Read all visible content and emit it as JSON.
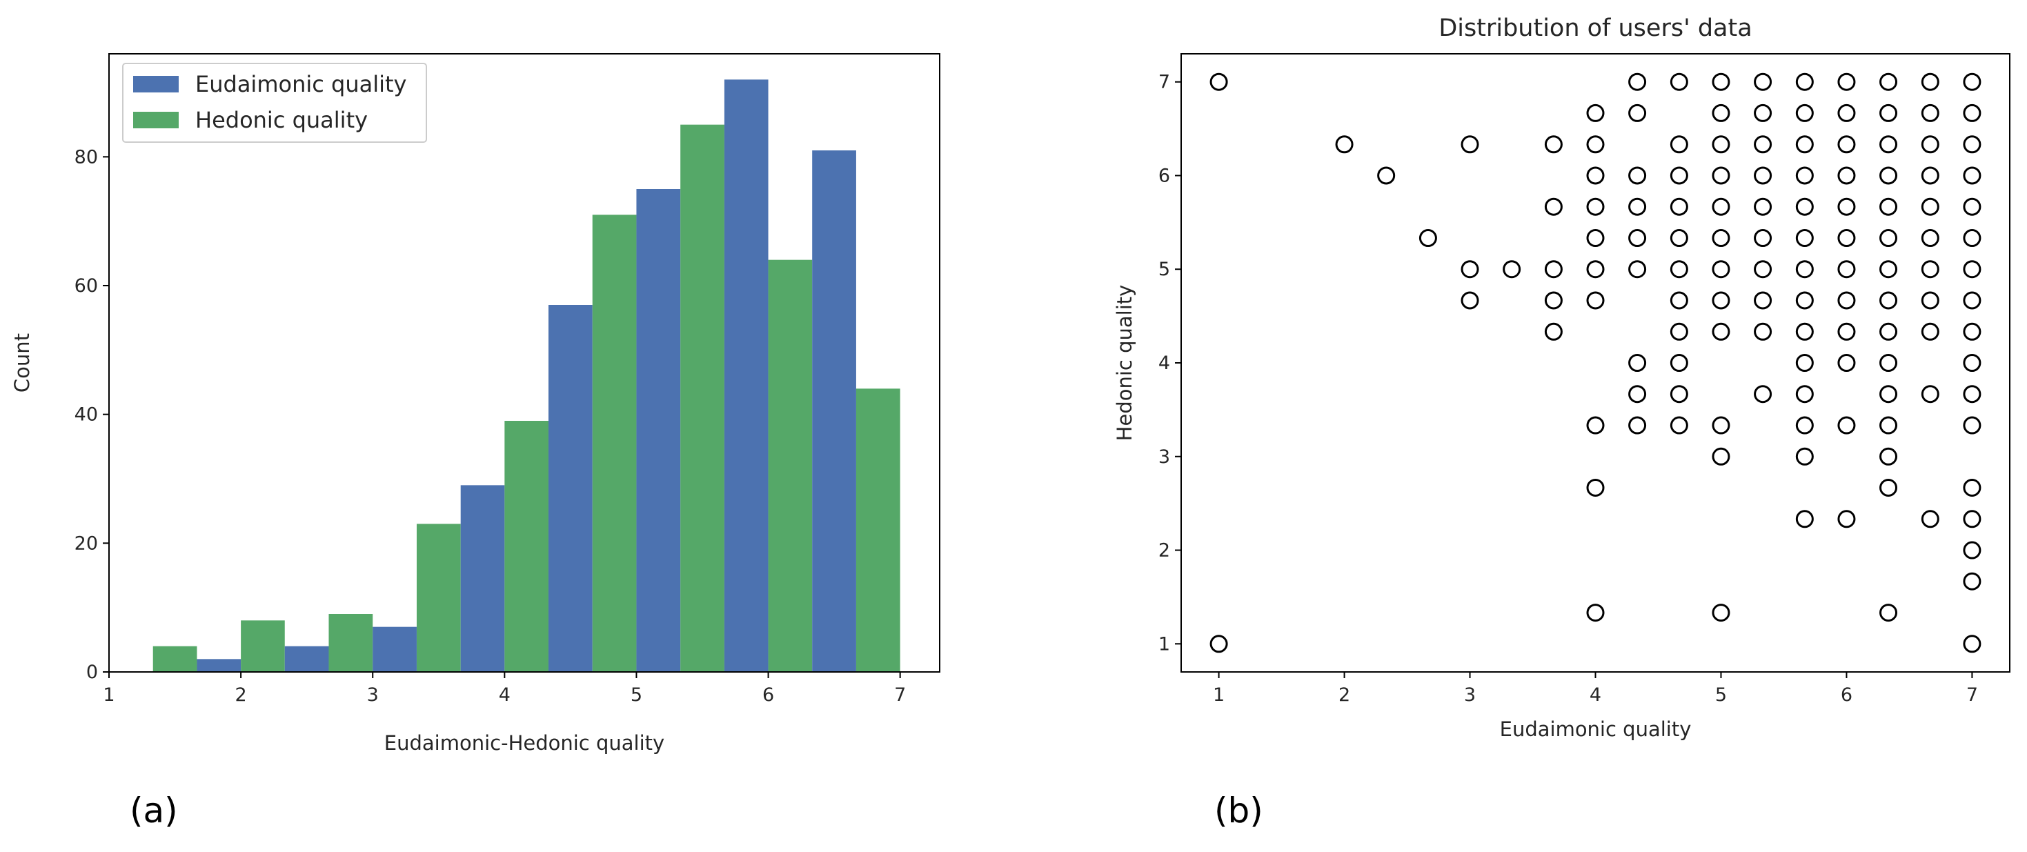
{
  "chart_data": [
    {
      "type": "bar",
      "panel_label": "(a)",
      "title": "",
      "xlabel": "Eudaimonic-Hedonic quality",
      "ylabel": "Count",
      "xlim": [
        1,
        7.3
      ],
      "ylim": [
        0,
        96
      ],
      "xticks": [
        1,
        2,
        3,
        4,
        5,
        6,
        7
      ],
      "yticks": [
        0,
        20,
        40,
        60,
        80
      ],
      "bins": [
        [
          1.0,
          1.667
        ],
        [
          1.667,
          2.333
        ],
        [
          2.333,
          3.0
        ],
        [
          3.0,
          3.667
        ],
        [
          3.667,
          4.333
        ],
        [
          4.333,
          5.0
        ],
        [
          5.0,
          5.667
        ],
        [
          5.667,
          6.333
        ],
        [
          6.333,
          7.0
        ]
      ],
      "legend_location": "upper left",
      "series": [
        {
          "name": "Eudaimonic quality",
          "color": "#4c72b0",
          "values": [
            0,
            2,
            4,
            7,
            29,
            57,
            75,
            92,
            81
          ]
        },
        {
          "name": "Hedonic quality",
          "color": "#55a868",
          "values": [
            4,
            8,
            9,
            23,
            39,
            71,
            85,
            64,
            44
          ]
        }
      ]
    },
    {
      "type": "scatter",
      "panel_label": "(b)",
      "title": "Distribution of users' data",
      "xlabel": "Eudaimonic quality",
      "ylabel": "Hedonic quality",
      "xlim": [
        0.7,
        7.3
      ],
      "ylim": [
        0.7,
        7.3
      ],
      "xticks": [
        1,
        2,
        3,
        4,
        5,
        6,
        7
      ],
      "yticks": [
        1,
        2,
        3,
        4,
        5,
        6,
        7
      ],
      "marker": "open-circle",
      "marker_color": "#000000",
      "points": [
        {
          "x": 1,
          "y": 7
        },
        {
          "x": 1,
          "y": 1
        },
        {
          "x": 2,
          "y": 6.333
        },
        {
          "x": 2.333,
          "y": 6
        },
        {
          "x": 2.667,
          "y": 5.333
        },
        {
          "x": 3,
          "y": 6.333
        },
        {
          "x": 3,
          "y": 5
        },
        {
          "x": 3,
          "y": 4.667
        },
        {
          "x": 3.333,
          "y": 5
        },
        {
          "x": 3.667,
          "y": 6.333
        },
        {
          "x": 3.667,
          "y": 5.667
        },
        {
          "x": 3.667,
          "y": 5
        },
        {
          "x": 3.667,
          "y": 4.667
        },
        {
          "x": 3.667,
          "y": 4.333
        },
        {
          "x": 4,
          "y": 6.667
        },
        {
          "x": 4,
          "y": 6.333
        },
        {
          "x": 4,
          "y": 6
        },
        {
          "x": 4,
          "y": 5.667
        },
        {
          "x": 4,
          "y": 5.333
        },
        {
          "x": 4,
          "y": 5
        },
        {
          "x": 4,
          "y": 4.667
        },
        {
          "x": 4,
          "y": 3.333
        },
        {
          "x": 4,
          "y": 2.667
        },
        {
          "x": 4,
          "y": 1.333
        },
        {
          "x": 4.333,
          "y": 7
        },
        {
          "x": 4.333,
          "y": 6.667
        },
        {
          "x": 4.333,
          "y": 6
        },
        {
          "x": 4.333,
          "y": 5.667
        },
        {
          "x": 4.333,
          "y": 5.333
        },
        {
          "x": 4.333,
          "y": 5
        },
        {
          "x": 4.333,
          "y": 4
        },
        {
          "x": 4.333,
          "y": 3.667
        },
        {
          "x": 4.333,
          "y": 3.333
        },
        {
          "x": 4.667,
          "y": 7
        },
        {
          "x": 4.667,
          "y": 6.333
        },
        {
          "x": 4.667,
          "y": 6
        },
        {
          "x": 4.667,
          "y": 5.667
        },
        {
          "x": 4.667,
          "y": 5.333
        },
        {
          "x": 4.667,
          "y": 5
        },
        {
          "x": 4.667,
          "y": 4.667
        },
        {
          "x": 4.667,
          "y": 4.333
        },
        {
          "x": 4.667,
          "y": 4
        },
        {
          "x": 4.667,
          "y": 3.667
        },
        {
          "x": 4.667,
          "y": 3.333
        },
        {
          "x": 5,
          "y": 7
        },
        {
          "x": 5,
          "y": 6.667
        },
        {
          "x": 5,
          "y": 6.333
        },
        {
          "x": 5,
          "y": 6
        },
        {
          "x": 5,
          "y": 5.667
        },
        {
          "x": 5,
          "y": 5.333
        },
        {
          "x": 5,
          "y": 5
        },
        {
          "x": 5,
          "y": 4.667
        },
        {
          "x": 5,
          "y": 4.333
        },
        {
          "x": 5,
          "y": 3.333
        },
        {
          "x": 5,
          "y": 3
        },
        {
          "x": 5,
          "y": 1.333
        },
        {
          "x": 5.333,
          "y": 7
        },
        {
          "x": 5.333,
          "y": 6.667
        },
        {
          "x": 5.333,
          "y": 6.333
        },
        {
          "x": 5.333,
          "y": 6
        },
        {
          "x": 5.333,
          "y": 5.667
        },
        {
          "x": 5.333,
          "y": 5.333
        },
        {
          "x": 5.333,
          "y": 5
        },
        {
          "x": 5.333,
          "y": 4.667
        },
        {
          "x": 5.333,
          "y": 4.333
        },
        {
          "x": 5.333,
          "y": 3.667
        },
        {
          "x": 5.667,
          "y": 7
        },
        {
          "x": 5.667,
          "y": 6.667
        },
        {
          "x": 5.667,
          "y": 6.333
        },
        {
          "x": 5.667,
          "y": 6
        },
        {
          "x": 5.667,
          "y": 5.667
        },
        {
          "x": 5.667,
          "y": 5.333
        },
        {
          "x": 5.667,
          "y": 5
        },
        {
          "x": 5.667,
          "y": 4.667
        },
        {
          "x": 5.667,
          "y": 4.333
        },
        {
          "x": 5.667,
          "y": 4
        },
        {
          "x": 5.667,
          "y": 3.667
        },
        {
          "x": 5.667,
          "y": 3.333
        },
        {
          "x": 5.667,
          "y": 3
        },
        {
          "x": 5.667,
          "y": 2.333
        },
        {
          "x": 6,
          "y": 7
        },
        {
          "x": 6,
          "y": 6.667
        },
        {
          "x": 6,
          "y": 6.333
        },
        {
          "x": 6,
          "y": 6
        },
        {
          "x": 6,
          "y": 5.667
        },
        {
          "x": 6,
          "y": 5.333
        },
        {
          "x": 6,
          "y": 5
        },
        {
          "x": 6,
          "y": 4.667
        },
        {
          "x": 6,
          "y": 4.333
        },
        {
          "x": 6,
          "y": 4
        },
        {
          "x": 6,
          "y": 3.333
        },
        {
          "x": 6,
          "y": 2.333
        },
        {
          "x": 6.333,
          "y": 7
        },
        {
          "x": 6.333,
          "y": 6.667
        },
        {
          "x": 6.333,
          "y": 6.333
        },
        {
          "x": 6.333,
          "y": 6
        },
        {
          "x": 6.333,
          "y": 5.667
        },
        {
          "x": 6.333,
          "y": 5.333
        },
        {
          "x": 6.333,
          "y": 5
        },
        {
          "x": 6.333,
          "y": 4.667
        },
        {
          "x": 6.333,
          "y": 4.333
        },
        {
          "x": 6.333,
          "y": 4
        },
        {
          "x": 6.333,
          "y": 3.667
        },
        {
          "x": 6.333,
          "y": 3.333
        },
        {
          "x": 6.333,
          "y": 3
        },
        {
          "x": 6.333,
          "y": 2.667
        },
        {
          "x": 6.333,
          "y": 1.333
        },
        {
          "x": 6.667,
          "y": 7
        },
        {
          "x": 6.667,
          "y": 6.667
        },
        {
          "x": 6.667,
          "y": 6.333
        },
        {
          "x": 6.667,
          "y": 6
        },
        {
          "x": 6.667,
          "y": 5.667
        },
        {
          "x": 6.667,
          "y": 5.333
        },
        {
          "x": 6.667,
          "y": 5
        },
        {
          "x": 6.667,
          "y": 4.667
        },
        {
          "x": 6.667,
          "y": 4.333
        },
        {
          "x": 6.667,
          "y": 3.667
        },
        {
          "x": 6.667,
          "y": 2.333
        },
        {
          "x": 7,
          "y": 7
        },
        {
          "x": 7,
          "y": 6.667
        },
        {
          "x": 7,
          "y": 6.333
        },
        {
          "x": 7,
          "y": 6
        },
        {
          "x": 7,
          "y": 5.667
        },
        {
          "x": 7,
          "y": 5.333
        },
        {
          "x": 7,
          "y": 5
        },
        {
          "x": 7,
          "y": 4.667
        },
        {
          "x": 7,
          "y": 4.333
        },
        {
          "x": 7,
          "y": 4
        },
        {
          "x": 7,
          "y": 3.667
        },
        {
          "x": 7,
          "y": 3.333
        },
        {
          "x": 7,
          "y": 2.667
        },
        {
          "x": 7,
          "y": 2.333
        },
        {
          "x": 7,
          "y": 2
        },
        {
          "x": 7,
          "y": 1.667
        },
        {
          "x": 7,
          "y": 1
        }
      ]
    }
  ]
}
